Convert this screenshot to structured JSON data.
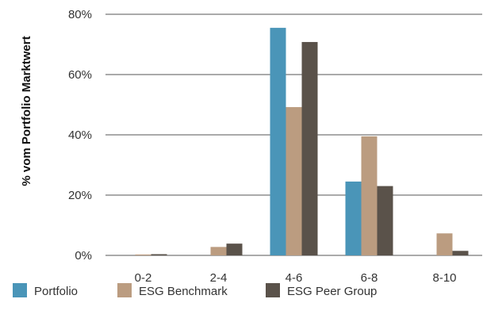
{
  "chart_data": {
    "type": "bar",
    "title": "",
    "xlabel": "",
    "ylabel": "% vom Portfolio Marktwert",
    "categories": [
      "0-2",
      "2-4",
      "4-6",
      "6-8",
      "8-10"
    ],
    "ylim": [
      0,
      80
    ],
    "yticks": [
      0,
      20,
      40,
      60,
      80
    ],
    "ytick_labels": [
      "0%",
      "20%",
      "40%",
      "60%",
      "80%"
    ],
    "grid": true,
    "legend_position": "bottom-left",
    "series": [
      {
        "name": "Portfolio",
        "color": "#4a95b8",
        "values": [
          0,
          0,
          75.5,
          24.5,
          0
        ]
      },
      {
        "name": "ESG Benchmark",
        "color": "#bb9c80",
        "values": [
          0.3,
          2.8,
          49.2,
          39.5,
          7.3
        ]
      },
      {
        "name": "ESG Peer Group",
        "color": "#5a524a",
        "values": [
          0.4,
          3.9,
          70.8,
          23,
          1.5
        ]
      }
    ]
  }
}
